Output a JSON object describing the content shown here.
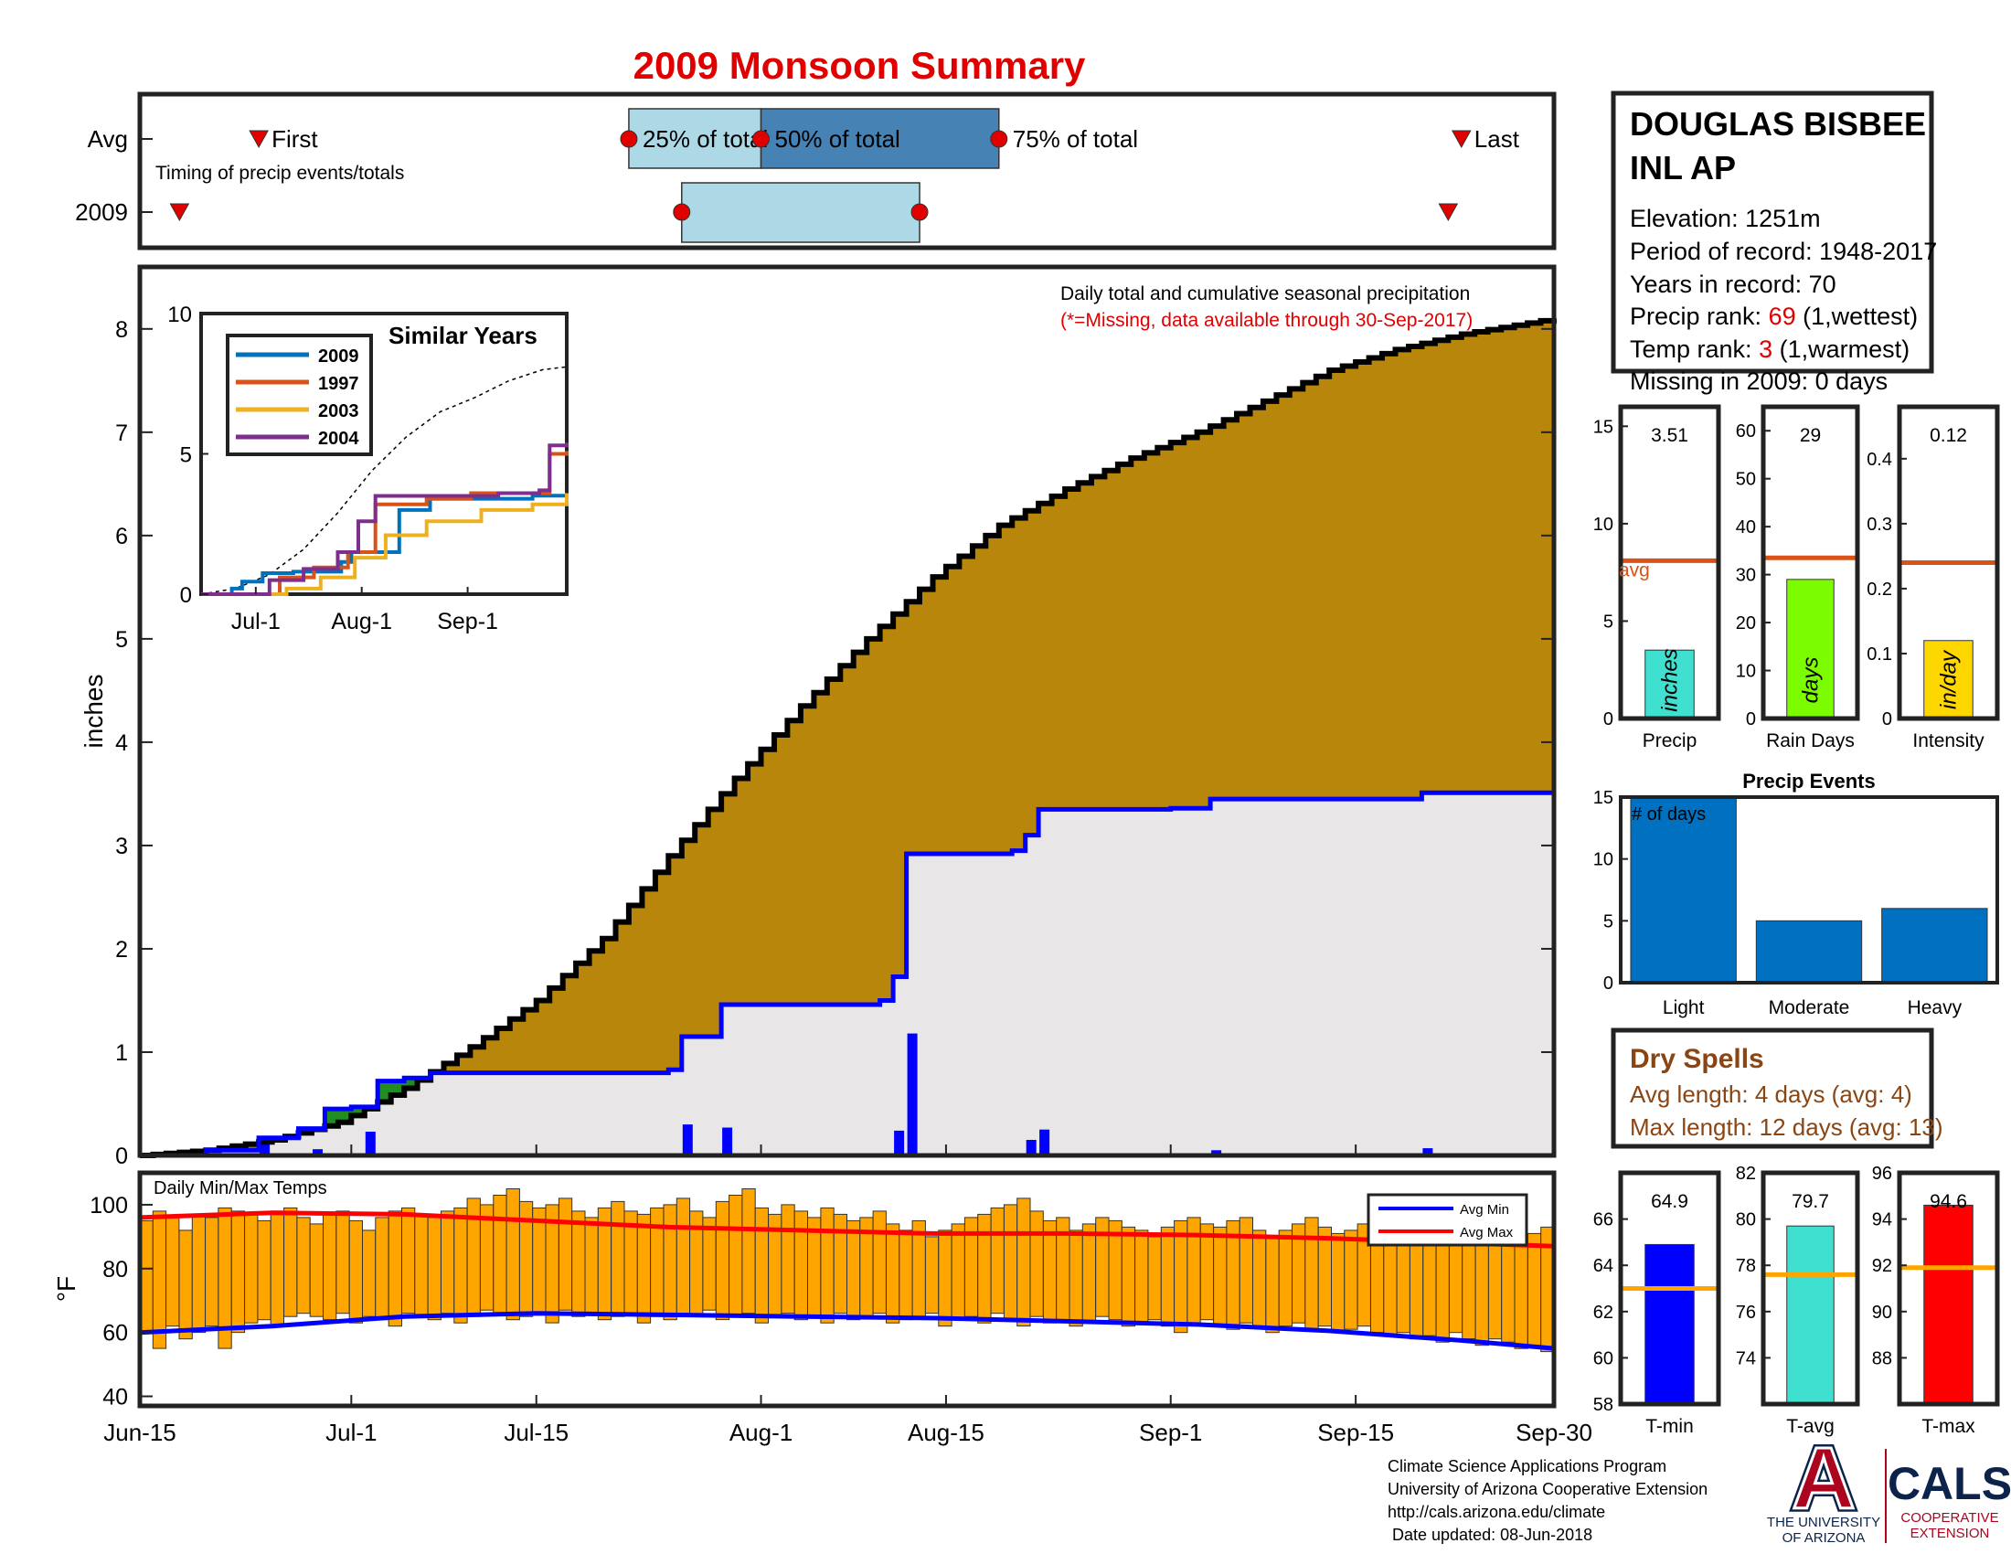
{
  "figure": {
    "title": "2009 Monsoon Summary",
    "title_color": "#e00000",
    "footer_lines": [
      "Climate Science Applications Program",
      "University of Arizona Cooperative Extension",
      "http://cals.arizona.edu/climate",
      " Date updated: 08-Jun-2018"
    ],
    "logos": {
      "ua_letter": "A",
      "ua_name_lines": [
        "THE UNIVERSITY",
        "OF ARIZONA"
      ],
      "cals": "CALS",
      "cals_sub_lines": [
        "COOPERATIVE",
        "EXTENSION"
      ]
    }
  },
  "station": {
    "name_lines": [
      "DOUGLAS BISBEE",
      "INL AP"
    ],
    "elevation": "Elevation: 1251m",
    "period": "Period of record: 1948-2017",
    "years": "Years in record: 70",
    "precip_rank_label": "Precip rank: ",
    "precip_rank_value": "69",
    "precip_rank_note": " (1,wettest)",
    "temp_rank_label": "Temp rank: ",
    "temp_rank_value": "3",
    "temp_rank_note": " (1,warmest)",
    "missing": "Missing in 2009: 0 days",
    "rank_color": "#e00000"
  },
  "dry_spells": {
    "title": "Dry Spells",
    "avg": "Avg length: 4 days (avg: 4)",
    "max": "Max length: 12 days (avg: 13)",
    "color": "#8b4513"
  },
  "chart_data": [
    {
      "id": "timing",
      "type": "timeline",
      "row_labels": [
        "Avg",
        "2009"
      ],
      "note": "Timing of precip events/totals",
      "avg": {
        "first": "2009-06-24",
        "p25": "2009-07-22",
        "p50": "2009-08-01",
        "p75": "2009-08-19",
        "last": "2009-09-23"
      },
      "y2009": {
        "first": "2009-06-18",
        "p25": "2009-07-26",
        "p75": "2009-08-13",
        "last": "2009-09-22"
      },
      "labels": {
        "first": "First",
        "p25": "25% of total",
        "p50": "50% of total",
        "p75": "75% of total",
        "last": "Last"
      },
      "colors": {
        "box_light": "#add8e6",
        "box_dark": "#4682b4",
        "marker": "#e00000"
      }
    },
    {
      "id": "precip",
      "type": "area",
      "ylabel": "inches",
      "ylim": [
        0,
        8.6
      ],
      "yticks": [
        0,
        1,
        2,
        3,
        4,
        5,
        6,
        7,
        8
      ],
      "xticks": [
        "Jun-15",
        "Jul-1",
        "Jul-15",
        "Aug-1",
        "Aug-15",
        "Sep-1",
        "Sep-15",
        "Sep-30"
      ],
      "xtick_dates": [
        "2009-06-15",
        "2009-07-01",
        "2009-07-15",
        "2009-08-01",
        "2009-08-15",
        "2009-09-01",
        "2009-09-15",
        "2009-09-30"
      ],
      "header": "Daily total and cumulative seasonal precipitation",
      "header_note": "(*=Missing, data available through 30-Sep-2017)",
      "avg_cumulative": {
        "x": [
          "2009-06-15",
          "2009-06-20",
          "2009-06-25",
          "2009-06-30",
          "2009-07-05",
          "2009-07-10",
          "2009-07-15",
          "2009-07-20",
          "2009-07-25",
          "2009-07-30",
          "2009-08-04",
          "2009-08-09",
          "2009-08-14",
          "2009-08-19",
          "2009-08-24",
          "2009-08-29",
          "2009-09-03",
          "2009-09-08",
          "2009-09-13",
          "2009-09-18",
          "2009-09-23",
          "2009-09-30"
        ],
        "y": [
          0.0,
          0.05,
          0.15,
          0.32,
          0.65,
          1.05,
          1.5,
          2.1,
          2.9,
          3.65,
          4.35,
          5.0,
          5.6,
          6.1,
          6.45,
          6.75,
          7.0,
          7.3,
          7.6,
          7.8,
          7.95,
          8.1
        ]
      },
      "cumulative_2009": {
        "x": [
          "2009-06-15",
          "2009-06-20",
          "2009-06-24",
          "2009-06-27",
          "2009-06-29",
          "2009-07-01",
          "2009-07-02",
          "2009-07-03",
          "2009-07-05",
          "2009-07-07",
          "2009-07-25",
          "2009-07-26",
          "2009-07-29",
          "2009-08-10",
          "2009-08-11",
          "2009-08-12",
          "2009-08-20",
          "2009-08-21",
          "2009-08-22",
          "2009-09-01",
          "2009-09-04",
          "2009-09-20",
          "2009-09-30"
        ],
        "y": [
          0.0,
          0.05,
          0.17,
          0.26,
          0.45,
          0.47,
          0.47,
          0.72,
          0.75,
          0.8,
          0.83,
          1.15,
          1.46,
          1.5,
          1.73,
          2.92,
          2.95,
          3.1,
          3.35,
          3.36,
          3.45,
          3.51,
          3.51
        ]
      },
      "daily_2009": {
        "x": [
          "2009-06-24",
          "2009-06-28",
          "2009-07-02",
          "2009-07-26",
          "2009-07-29",
          "2009-08-11",
          "2009-08-12",
          "2009-08-21",
          "2009-08-22",
          "2009-09-04",
          "2009-09-20"
        ],
        "y": [
          0.14,
          0.06,
          0.23,
          0.3,
          0.27,
          0.24,
          1.18,
          0.15,
          0.25,
          0.05,
          0.07
        ]
      },
      "colors": {
        "above_avg": "#b8860b",
        "below_avg_2009": "#228b22",
        "area_2009": "#e8e6e6",
        "line_2009": "#0000ff",
        "avg_step": "#000000"
      }
    },
    {
      "id": "similar",
      "type": "line",
      "title": "Similar Years",
      "xticks": [
        "Jul-1",
        "Aug-1",
        "Sep-1"
      ],
      "xtick_dates": [
        "2009-07-01",
        "2009-08-01",
        "2009-09-01"
      ],
      "yticks": [
        0,
        5,
        10
      ],
      "ylim": [
        0,
        10
      ],
      "xlim": [
        "2009-06-15",
        "2009-09-30"
      ],
      "series": [
        {
          "name": "2009",
          "color": "#0072bd",
          "x": [
            "2009-06-15",
            "2009-06-24",
            "2009-06-27",
            "2009-07-03",
            "2009-07-12",
            "2009-07-26",
            "2009-07-29",
            "2009-08-12",
            "2009-08-21",
            "2009-09-20",
            "2009-09-30"
          ],
          "y": [
            0.0,
            0.2,
            0.45,
            0.75,
            0.8,
            1.15,
            1.5,
            3.0,
            3.4,
            3.51,
            3.51
          ]
        },
        {
          "name": "1997",
          "color": "#d95319",
          "x": [
            "2009-06-15",
            "2009-06-30",
            "2009-07-08",
            "2009-07-18",
            "2009-07-28",
            "2009-08-05",
            "2009-08-20",
            "2009-09-02",
            "2009-09-20",
            "2009-09-25",
            "2009-09-30"
          ],
          "y": [
            0.0,
            0.0,
            0.6,
            0.95,
            1.5,
            3.2,
            3.4,
            3.6,
            3.6,
            5.0,
            5.1
          ]
        },
        {
          "name": "2003",
          "color": "#edb120",
          "x": [
            "2009-06-15",
            "2009-07-01",
            "2009-07-10",
            "2009-07-20",
            "2009-07-30",
            "2009-08-08",
            "2009-08-20",
            "2009-09-05",
            "2009-09-20",
            "2009-09-30"
          ],
          "y": [
            0.0,
            0.0,
            0.2,
            0.6,
            1.3,
            2.1,
            2.6,
            3.0,
            3.2,
            3.6
          ]
        },
        {
          "name": "2004",
          "color": "#7e2f8e",
          "x": [
            "2009-06-15",
            "2009-06-28",
            "2009-07-05",
            "2009-07-15",
            "2009-07-25",
            "2009-07-31",
            "2009-08-05",
            "2009-08-25",
            "2009-09-10",
            "2009-09-22",
            "2009-09-25",
            "2009-09-30"
          ],
          "y": [
            0.0,
            0.0,
            0.5,
            0.9,
            1.5,
            2.6,
            3.5,
            3.5,
            3.6,
            3.7,
            5.3,
            5.4
          ]
        }
      ],
      "avg": {
        "x": [
          "2009-06-15",
          "2009-06-25",
          "2009-07-05",
          "2009-07-15",
          "2009-07-25",
          "2009-08-04",
          "2009-08-14",
          "2009-08-24",
          "2009-09-03",
          "2009-09-13",
          "2009-09-23",
          "2009-09-30"
        ],
        "y": [
          0.0,
          0.2,
          0.7,
          1.6,
          2.9,
          4.4,
          5.6,
          6.5,
          7.0,
          7.6,
          8.0,
          8.1
        ]
      }
    },
    {
      "id": "temps",
      "type": "bar",
      "title": "Daily Min/Max Temps",
      "ylabel": "°F",
      "ylim": [
        37,
        110
      ],
      "yticks": [
        40,
        60,
        80,
        100
      ],
      "legend": [
        "Avg Min",
        "Avg Max"
      ],
      "legend_position": "top-right",
      "bar_color": "#ffa500",
      "start_date": "2009-06-15",
      "tmin": [
        60,
        55,
        62,
        58,
        60,
        62,
        55,
        60,
        63,
        64,
        62,
        65,
        66,
        65,
        64,
        66,
        63,
        65,
        64,
        62,
        66,
        65,
        64,
        66,
        63,
        65,
        67,
        66,
        64,
        65,
        66,
        63,
        67,
        65,
        66,
        64,
        65,
        66,
        63,
        65,
        64,
        66,
        65,
        67,
        64,
        65,
        66,
        63,
        65,
        66,
        64,
        65,
        63,
        66,
        64,
        65,
        66,
        63,
        64,
        65,
        66,
        62,
        64,
        65,
        63,
        66,
        64,
        62,
        65,
        63,
        64,
        62,
        63,
        65,
        64,
        62,
        63,
        64,
        62,
        60,
        63,
        64,
        62,
        61,
        63,
        62,
        60,
        62,
        63,
        61,
        62,
        60,
        61,
        62,
        60,
        59,
        60,
        58,
        59,
        57,
        60,
        58,
        56,
        58,
        57,
        55,
        56,
        54
      ],
      "tmax": [
        95,
        98,
        96,
        92,
        97,
        96,
        99,
        98,
        97,
        95,
        98,
        99,
        96,
        94,
        97,
        98,
        95,
        92,
        96,
        98,
        99,
        97,
        96,
        98,
        99,
        102,
        100,
        103,
        105,
        101,
        99,
        100,
        102,
        98,
        96,
        99,
        101,
        98,
        97,
        99,
        100,
        102,
        98,
        96,
        101,
        103,
        105,
        99,
        97,
        100,
        98,
        96,
        99,
        97,
        95,
        96,
        98,
        94,
        92,
        95,
        90,
        92,
        94,
        96,
        97,
        99,
        100,
        102,
        98,
        95,
        96,
        92,
        94,
        96,
        95,
        93,
        92,
        90,
        93,
        95,
        96,
        94,
        93,
        95,
        96,
        92,
        90,
        92,
        94,
        96,
        93,
        91,
        92,
        94,
        90,
        92,
        93,
        91,
        90,
        92,
        91,
        88,
        90,
        92,
        91,
        90,
        91,
        93
      ],
      "avg_min": {
        "x": [
          "2009-06-15",
          "2009-06-25",
          "2009-07-05",
          "2009-07-15",
          "2009-07-25",
          "2009-08-04",
          "2009-08-14",
          "2009-08-24",
          "2009-09-03",
          "2009-09-13",
          "2009-09-23",
          "2009-09-30"
        ],
        "y": [
          60,
          62,
          65,
          66,
          65.5,
          65,
          64.5,
          63.5,
          62.5,
          60.5,
          57.5,
          55
        ]
      },
      "avg_max": {
        "x": [
          "2009-06-15",
          "2009-06-25",
          "2009-07-05",
          "2009-07-15",
          "2009-07-25",
          "2009-08-04",
          "2009-08-14",
          "2009-08-24",
          "2009-09-03",
          "2009-09-13",
          "2009-09-23",
          "2009-09-30"
        ],
        "y": [
          96,
          97.5,
          97,
          95,
          93,
          92,
          91,
          91,
          90.5,
          89.5,
          88,
          87
        ]
      }
    },
    {
      "id": "precip_bar",
      "type": "bar",
      "xlabel": "Precip",
      "value_label": "3.51",
      "value": 3.51,
      "avg": 8.1,
      "avg_label": "avg",
      "unit": "inches",
      "ylim": [
        0,
        16
      ],
      "yticks": [
        0,
        5,
        10,
        15
      ],
      "color": "#40e0d0"
    },
    {
      "id": "rain_days",
      "type": "bar",
      "xlabel": "Rain Days",
      "value_label": "29",
      "value": 29,
      "avg": 33.5,
      "unit": "days",
      "ylim": [
        0,
        65
      ],
      "yticks": [
        0,
        10,
        20,
        30,
        40,
        50,
        60
      ],
      "color": "#7cfc00"
    },
    {
      "id": "intensity",
      "type": "bar",
      "xlabel": "Intensity",
      "value_label": "0.12",
      "value": 0.12,
      "avg": 0.24,
      "unit": "in/day",
      "ylim": [
        0,
        0.48
      ],
      "yticks": [
        0,
        0.1,
        0.2,
        0.3,
        0.4
      ],
      "color": "#ffd700"
    },
    {
      "id": "events",
      "type": "bar",
      "title": "Precip Events",
      "ylabel_inside": "# of days",
      "categories": [
        "Light",
        "Moderate",
        "Heavy"
      ],
      "values": [
        15,
        5,
        6
      ],
      "ylim": [
        0,
        15
      ],
      "yticks": [
        0,
        5,
        10,
        15
      ],
      "color": "#0070c0"
    },
    {
      "id": "tmin_bar",
      "type": "bar",
      "xlabel": "T-min",
      "value_label": "64.9",
      "value": 64.9,
      "avg": 63.0,
      "ylim": [
        58,
        68
      ],
      "yticks": [
        58,
        60,
        62,
        64,
        66
      ],
      "color": "#0000ff"
    },
    {
      "id": "tavg_bar",
      "type": "bar",
      "xlabel": "T-avg",
      "value_label": "79.7",
      "value": 79.7,
      "avg": 77.6,
      "ylim": [
        72,
        82
      ],
      "yticks": [
        74,
        76,
        78,
        80,
        82
      ],
      "color": "#40e0d0"
    },
    {
      "id": "tmax_bar",
      "type": "bar",
      "xlabel": "T-max",
      "value_label": "94.6",
      "value": 94.6,
      "avg": 91.9,
      "ylim": [
        86,
        96
      ],
      "yticks": [
        88,
        90,
        92,
        94,
        96
      ],
      "color": "#ff0000"
    }
  ]
}
